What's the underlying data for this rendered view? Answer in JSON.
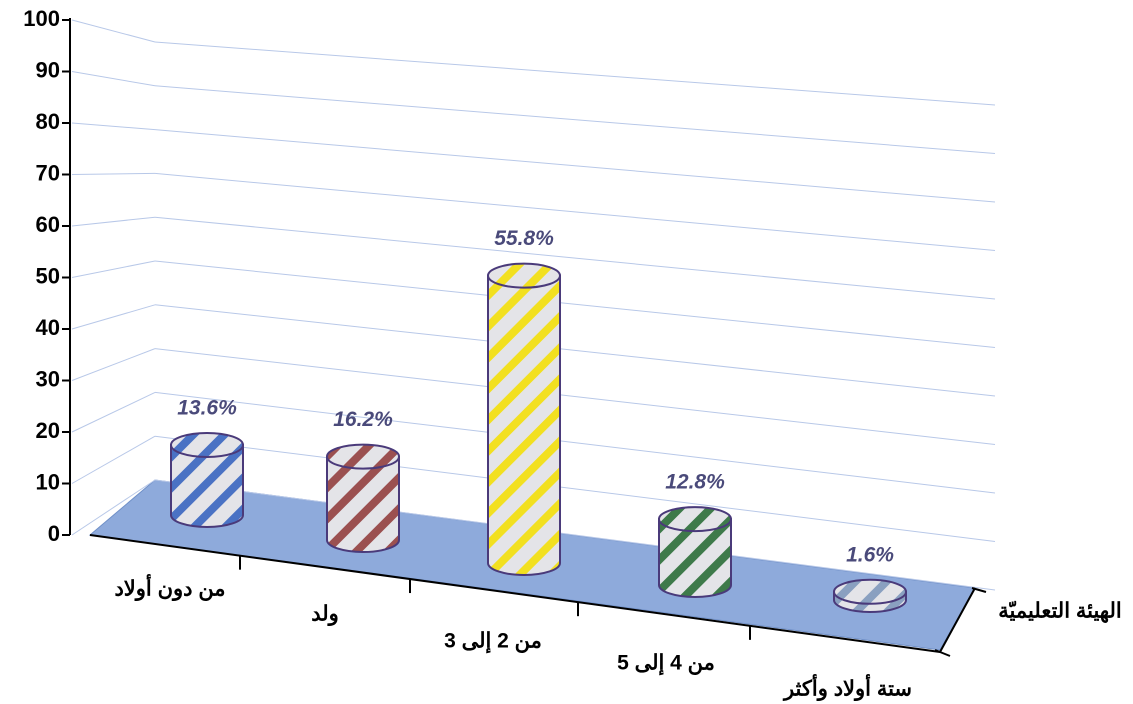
{
  "chart_data": {
    "type": "bar",
    "categories": [
      "من دون أولاد",
      "ولد",
      "من 2 إلى 3",
      "من 4 إلى 5",
      "ستة أولاد وأكثر"
    ],
    "series": [
      {
        "name": "الهيئة التعليميّة",
        "colors": [
          "#4a72c4",
          "#9b5050",
          "#f2e020",
          "#3e7a4a",
          "#8aa0c0"
        ],
        "values": [
          13.6,
          16.2,
          55.8,
          12.8,
          1.6
        ],
        "value_labels": [
          "13.6%",
          "16.2%",
          "55.8%",
          "12.8%",
          "1.6%"
        ]
      }
    ],
    "ylim": [
      0,
      100
    ],
    "yticks": [
      0,
      10,
      20,
      30,
      40,
      50,
      60,
      70,
      80,
      90,
      100
    ],
    "grid": true
  }
}
